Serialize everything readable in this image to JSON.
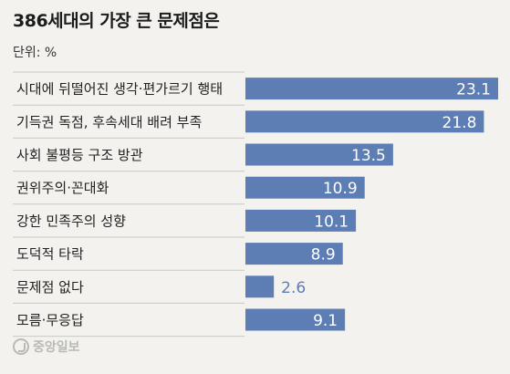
{
  "title": "386세대의 가장 큰 문제점은",
  "unit_label": "단위: %",
  "source": "중앙일보",
  "colors": {
    "bar": "#5d7eb5",
    "label_inside": "#ffffff",
    "label_outside": "#5d7eb5",
    "divider": "#c8c8c4",
    "text": "#222222"
  },
  "chart_data": {
    "type": "bar",
    "orientation": "horizontal",
    "categories": [
      "시대에 뒤떨어진 생각·편가르기 행태",
      "기득권 독점, 후속세대 배려 부족",
      "사회 불평등 구조 방관",
      "권위주의·꼰대화",
      "강한 민족주의 성향",
      "도덕적 타락",
      "문제점 없다",
      "모름·무응답"
    ],
    "values": [
      23.1,
      21.8,
      13.5,
      10.9,
      10.1,
      8.9,
      2.6,
      9.1
    ],
    "value_labels": [
      "23.1",
      "21.8",
      "13.5",
      "10.9",
      "10.1",
      "8.9",
      "2.6",
      "9.1"
    ],
    "xlim": [
      0,
      23.1
    ],
    "grid": false,
    "legend": "none"
  }
}
